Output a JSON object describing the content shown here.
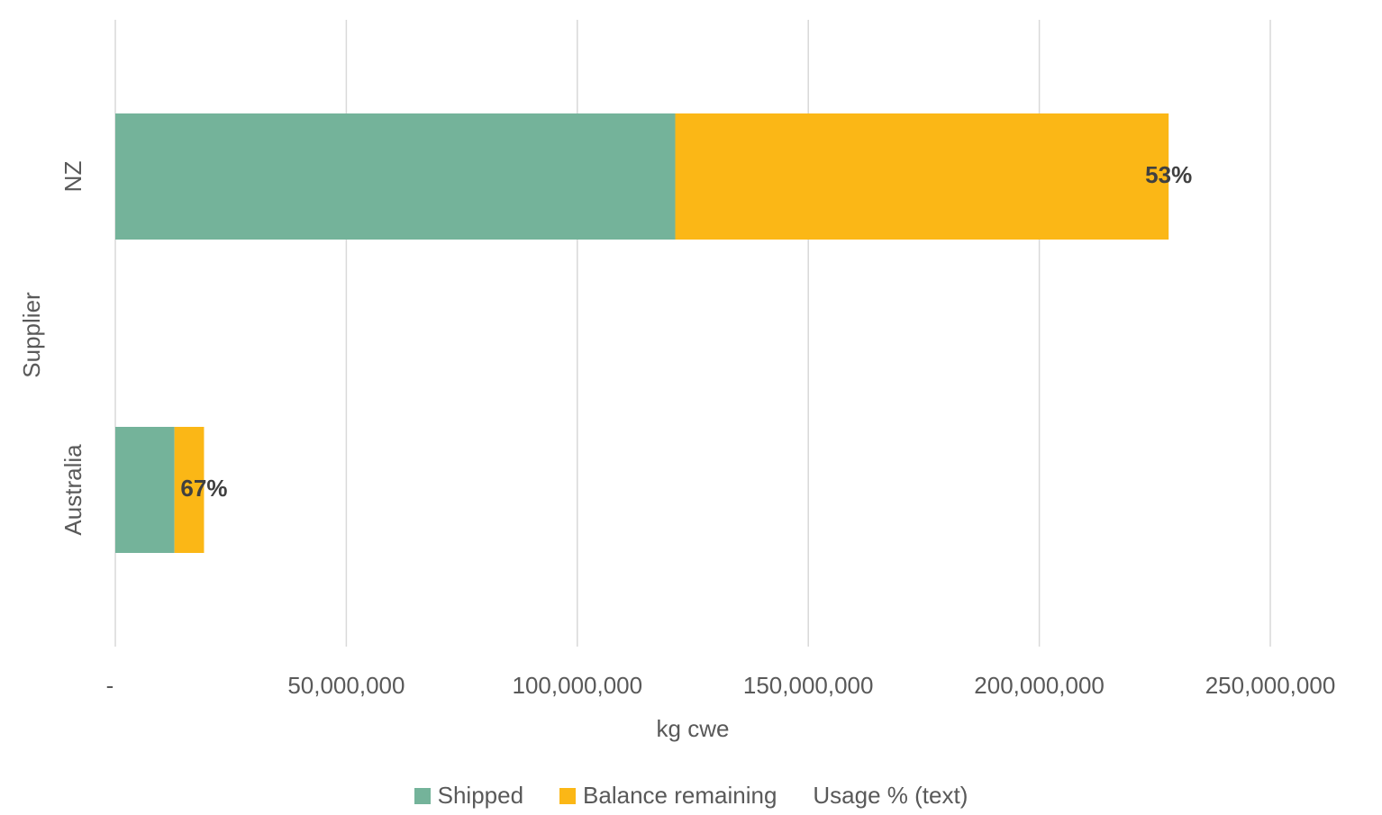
{
  "chart_data": {
    "type": "bar",
    "orientation": "horizontal",
    "stacked": true,
    "categories": [
      "NZ",
      "Australia"
    ],
    "series": [
      {
        "name": "Shipped",
        "color": "#74b39a",
        "values": [
          121200000,
          12800000
        ]
      },
      {
        "name": "Balance remaining",
        "color": "#fbb716",
        "values": [
          106800000,
          6400000
        ]
      }
    ],
    "data_labels": [
      "53%",
      "67%"
    ],
    "xlabel": "kg cwe",
    "ylabel": "Supplier",
    "xlim": [
      0,
      250000000
    ],
    "x_ticks": [
      "-",
      "50,000,000",
      "100,000,000",
      "150,000,000",
      "200,000,000",
      "250,000,000"
    ],
    "grid": true,
    "legend_position": "bottom",
    "legend": [
      {
        "label": "Shipped",
        "color": "#74b39a"
      },
      {
        "label": "Balance remaining",
        "color": "#fbb716"
      },
      {
        "label": "Usage % (text)",
        "color": ""
      }
    ]
  }
}
